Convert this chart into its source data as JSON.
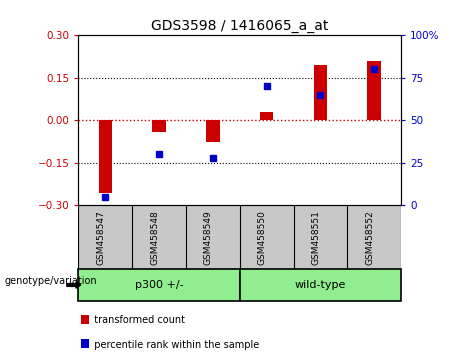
{
  "title": "GDS3598 / 1416065_a_at",
  "samples": [
    "GSM458547",
    "GSM458548",
    "GSM458549",
    "GSM458550",
    "GSM458551",
    "GSM458552"
  ],
  "transformed_counts": [
    -0.255,
    -0.04,
    -0.075,
    0.03,
    0.195,
    0.21
  ],
  "percentile_ranks": [
    5,
    30,
    28,
    70,
    65,
    80
  ],
  "ylim_left": [
    -0.3,
    0.3
  ],
  "ylim_right": [
    0,
    100
  ],
  "yticks_left": [
    -0.3,
    -0.15,
    0,
    0.15,
    0.3
  ],
  "yticks_right": [
    0,
    25,
    50,
    75,
    100
  ],
  "bar_color": "#CC0000",
  "dot_color": "#0000CC",
  "hline_color": "#CC0000",
  "grid_color": "black",
  "sample_bg_color": "#C8C8C8",
  "geno_bg_color": "#90EE90",
  "legend_red": "transformed count",
  "legend_blue": "percentile rank within the sample",
  "genotype_label": "genotype/variation",
  "p300_label": "p300 +/-",
  "wildtype_label": "wild-type",
  "bar_width": 0.25
}
